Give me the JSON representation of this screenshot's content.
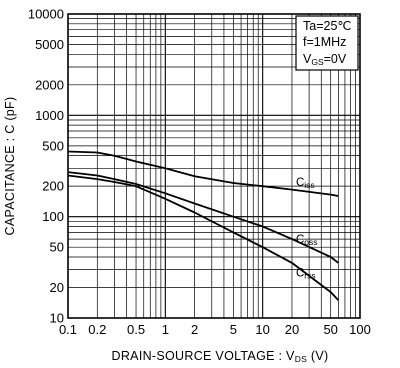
{
  "chart_data": {
    "type": "line",
    "xlabel": "DRAIN-SOURCE  VOLTAGE : V",
    "xlabel_sub": "DS",
    "xlabel_unit": "(V)",
    "ylabel": "CAPACITANCE : C (pF)",
    "x_scale": "log",
    "y_scale": "log",
    "xlim": [
      0.1,
      100
    ],
    "ylim": [
      10,
      10000
    ],
    "x_ticks": [
      0.1,
      0.2,
      0.5,
      1,
      2,
      5,
      10,
      20,
      50,
      100
    ],
    "x_tick_labels": [
      "0.1",
      "0.2",
      "0.5",
      "1",
      "2",
      "5",
      "10",
      "20",
      "50",
      "100"
    ],
    "y_ticks": [
      10,
      20,
      50,
      100,
      200,
      500,
      1000,
      2000,
      5000,
      10000
    ],
    "y_tick_labels": [
      "10",
      "20",
      "50",
      "100",
      "200",
      "500",
      "1000",
      "2000",
      "5000",
      "10000"
    ],
    "grid": true,
    "conditions": [
      "Ta=25℃",
      "f=1MHz",
      "V_GS=0V"
    ],
    "series": [
      {
        "name": "Ciss",
        "x": [
          0.1,
          0.2,
          0.3,
          0.5,
          1,
          2,
          5,
          10,
          20,
          50,
          60
        ],
        "y": [
          440,
          430,
          400,
          350,
          300,
          250,
          215,
          200,
          185,
          165,
          160
        ]
      },
      {
        "name": "Coss",
        "x": [
          0.1,
          0.2,
          0.3,
          0.5,
          1,
          2,
          5,
          10,
          20,
          50,
          60
        ],
        "y": [
          275,
          255,
          235,
          210,
          170,
          135,
          100,
          80,
          60,
          40,
          35
        ]
      },
      {
        "name": "Crss",
        "x": [
          0.1,
          0.2,
          0.3,
          0.5,
          1,
          2,
          5,
          10,
          20,
          50,
          60
        ],
        "y": [
          255,
          235,
          220,
          200,
          150,
          110,
          70,
          50,
          35,
          18,
          15
        ]
      }
    ]
  }
}
